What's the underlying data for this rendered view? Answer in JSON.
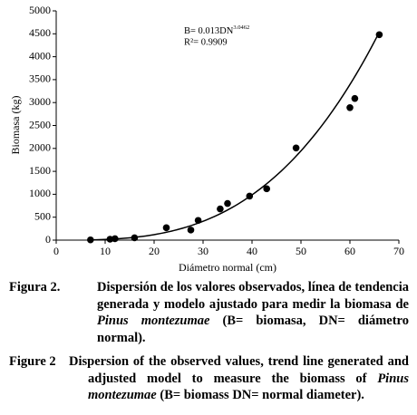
{
  "chart_data": {
    "type": "scatter",
    "xlabel": "Diámetro normal (cm)",
    "ylabel": "Biomasa (kg)",
    "x": [
      7,
      11,
      12,
      16,
      22.5,
      27.5,
      29,
      33.5,
      35,
      39.5,
      43,
      49,
      60,
      61,
      66
    ],
    "series": [
      {
        "name": "Observados",
        "color": "#000000",
        "values": [
          5,
          20,
          30,
          50,
          270,
          220,
          430,
          680,
          800,
          960,
          1120,
          2010,
          2890,
          3090,
          4480
        ]
      }
    ],
    "trendline": {
      "kind": "power",
      "coefficient": 0.013,
      "exponent": 3.0462,
      "color": "#000000"
    },
    "annotation": {
      "equation": "B= 0.013DN",
      "exponent": "3.0462",
      "r2": "R²= 0.9909"
    },
    "xlim": [
      0,
      70
    ],
    "xticks": [
      0,
      10,
      20,
      30,
      40,
      50,
      60,
      70
    ],
    "ylim": [
      0,
      5000
    ],
    "yticks": [
      0,
      500,
      1000,
      1500,
      2000,
      2500,
      3000,
      3500,
      4000,
      4500,
      5000
    ],
    "grid": false
  },
  "caption": {
    "es": {
      "label": "Figura 2.",
      "parts": [
        "Dispersión de los valores observados, línea de tendencia generada y modelo ajustado para medir la biomasa de ",
        "Pinus montezumae",
        " (B= biomasa, DN= diámetro normal)."
      ]
    },
    "en": {
      "label": "Figure 2",
      "parts": [
        "Dispersion of the observed values, trend line generated and adjusted model to measure the biomass of ",
        "Pinus montezumae",
        " (B= biomass DN= normal diameter)."
      ]
    }
  }
}
